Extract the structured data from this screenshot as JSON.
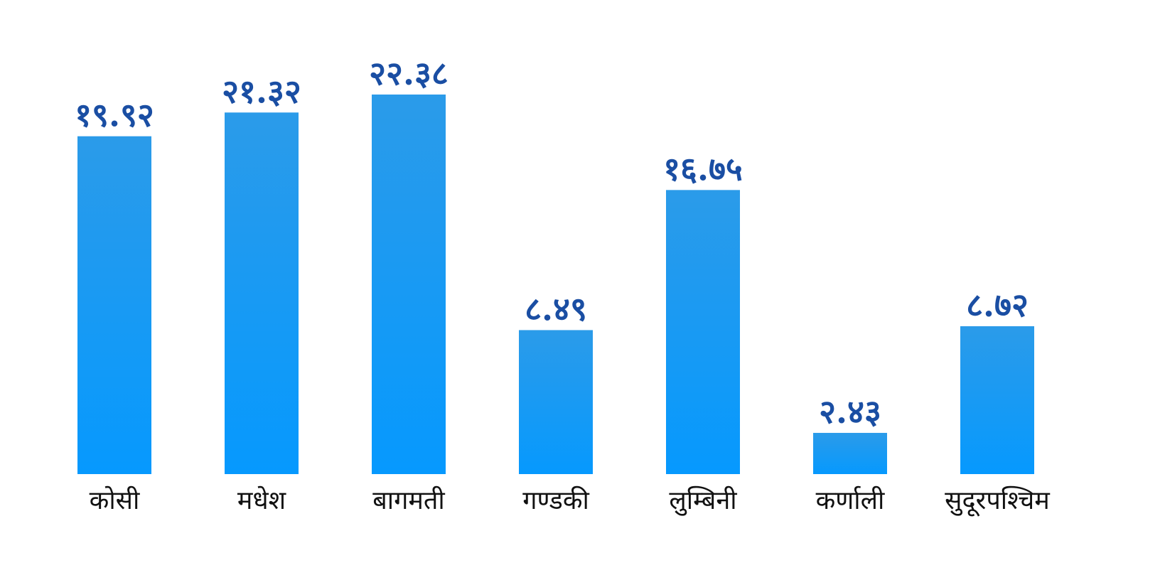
{
  "chart_data": {
    "type": "bar",
    "title": "",
    "xlabel": "",
    "ylabel": "",
    "ylim": [
      0,
      22.38
    ],
    "grid": false,
    "legend": "none",
    "categories": [
      "कोसी",
      "मधेश",
      "बागमती",
      "गण्डकी",
      "लुम्बिनी",
      "कर्णाली",
      "सुदूरपश्चिम"
    ],
    "values": [
      19.92,
      21.32,
      22.38,
      8.49,
      16.75,
      2.43,
      8.72
    ],
    "value_labels": [
      "१९.९२",
      "२१.३२",
      "२२.३८",
      "८.४९",
      "१६.७५",
      "२.४३",
      "८.७२"
    ],
    "colors": {
      "bar_top": "#2b9be9",
      "bar_bottom": "#0699fe",
      "value_label": "#1a4ea3",
      "category_label": "#111111"
    }
  }
}
